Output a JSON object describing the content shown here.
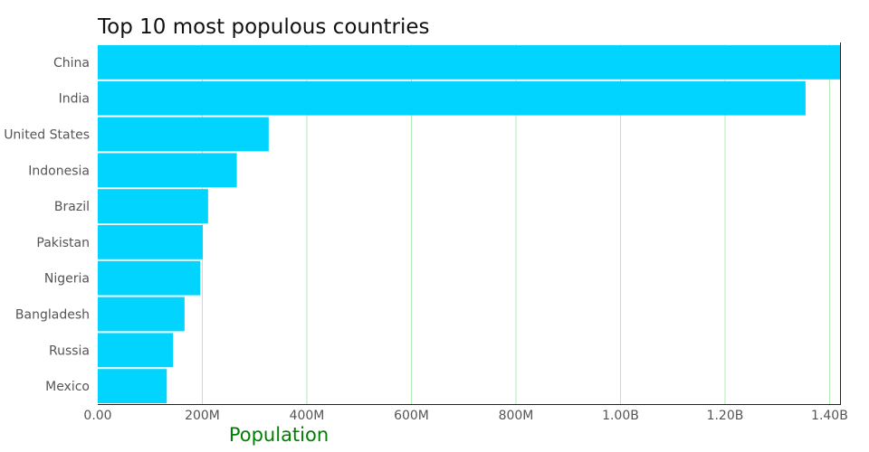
{
  "colors": {
    "bar": "#00d4ff",
    "grid": "#b3eab3",
    "axis_title": "#008000",
    "axis_line": "#222222",
    "tick_text": "#555555",
    "title_text": "#111111"
  },
  "chart_data": {
    "type": "bar",
    "orientation": "horizontal",
    "title": "Top 10 most populous countries",
    "xlabel": "Population",
    "ylabel": "",
    "categories": [
      "China",
      "India",
      "United States",
      "Indonesia",
      "Brazil",
      "Pakistan",
      "Nigeria",
      "Bangladesh",
      "Russia",
      "Mexico"
    ],
    "values": [
      1420000000,
      1354000000,
      327000000,
      266000000,
      211000000,
      201000000,
      196000000,
      166000000,
      144000000,
      132000000
    ],
    "xlim": [
      0,
      1420000000
    ],
    "x_ticks": [
      {
        "value": 0,
        "label": "0.00"
      },
      {
        "value": 200000000,
        "label": "200M"
      },
      {
        "value": 400000000,
        "label": "400M"
      },
      {
        "value": 600000000,
        "label": "600M"
      },
      {
        "value": 800000000,
        "label": "800M"
      },
      {
        "value": 1000000000,
        "label": "1.00B"
      },
      {
        "value": 1200000000,
        "label": "1.20B"
      },
      {
        "value": 1400000000,
        "label": "1.40B"
      }
    ],
    "grid": true,
    "legend": "none"
  }
}
